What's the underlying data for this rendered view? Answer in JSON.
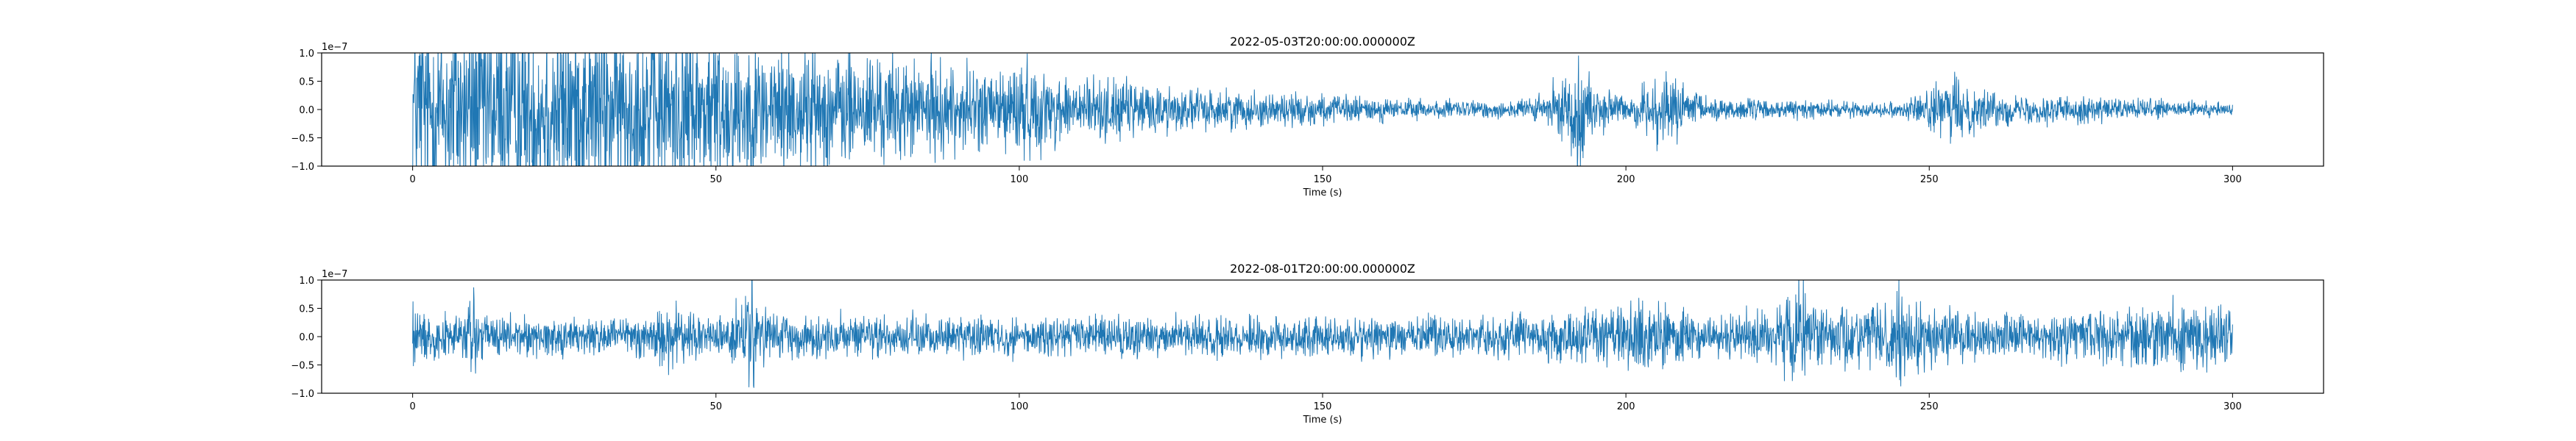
{
  "colors": {
    "trace": "#1f77b4",
    "axes": "#000000",
    "background": "#ffffff"
  },
  "chart_data": [
    {
      "type": "line",
      "title": "2022-05-03T20:00:00.000000Z",
      "xlabel": "Time (s)",
      "ylabel": "",
      "offset_text": "1e−7",
      "xlim": [
        -15,
        315
      ],
      "ylim": [
        -1.0,
        1.0
      ],
      "x_ticks": [
        0,
        50,
        100,
        150,
        200,
        250,
        300
      ],
      "x_tick_labels": [
        "0",
        "50",
        "100",
        "150",
        "200",
        "250",
        "300"
      ],
      "y_ticks": [
        -1.0,
        -0.5,
        0.0,
        0.5,
        1.0
      ],
      "y_tick_labels": [
        "−1.0",
        "−0.5",
        "0.0",
        "0.5",
        "1.0"
      ],
      "grid": false,
      "series": [
        {
          "x": [
            0,
            5,
            10,
            15,
            20,
            25,
            30,
            35,
            40,
            45,
            50,
            55,
            60,
            65,
            70,
            75,
            80,
            85,
            90,
            95,
            100,
            105,
            110,
            115,
            120,
            125,
            130,
            135,
            140,
            145,
            150,
            155,
            160,
            165,
            170,
            175,
            180,
            185,
            190,
            192,
            195,
            200,
            205,
            207,
            210,
            215,
            220,
            225,
            230,
            235,
            240,
            245,
            250,
            255,
            260,
            265,
            270,
            275,
            280,
            285,
            290,
            295,
            300
          ],
          "amplitude": [
            1.5,
            1.5,
            1.5,
            1.5,
            1.5,
            1.5,
            1.4,
            1.4,
            1.3,
            1.3,
            1.2,
            1.1,
            1.0,
            0.95,
            0.9,
            0.85,
            0.75,
            0.7,
            0.65,
            0.6,
            0.75,
            0.55,
            0.5,
            0.45,
            0.4,
            0.35,
            0.3,
            0.28,
            0.26,
            0.25,
            0.22,
            0.2,
            0.18,
            0.15,
            0.14,
            0.13,
            0.14,
            0.18,
            0.45,
            0.9,
            0.35,
            0.2,
            0.45,
            0.55,
            0.3,
            0.2,
            0.15,
            0.14,
            0.13,
            0.12,
            0.1,
            0.12,
            0.3,
            0.5,
            0.25,
            0.2,
            0.22,
            0.2,
            0.18,
            0.15,
            0.13,
            0.12,
            0.1
          ]
        }
      ]
    },
    {
      "type": "line",
      "title": "2022-08-01T20:00:00.000000Z",
      "xlabel": "Time (s)",
      "ylabel": "",
      "offset_text": "1e−7",
      "xlim": [
        -15,
        315
      ],
      "ylim": [
        -1.0,
        1.0
      ],
      "x_ticks": [
        0,
        50,
        100,
        150,
        200,
        250,
        300
      ],
      "x_tick_labels": [
        "0",
        "50",
        "100",
        "150",
        "200",
        "250",
        "300"
      ],
      "y_ticks": [
        -1.0,
        -0.5,
        0.0,
        0.5,
        1.0
      ],
      "y_tick_labels": [
        "−1.0",
        "−0.5",
        "0.0",
        "0.5",
        "1.0"
      ],
      "grid": false,
      "series": [
        {
          "x": [
            0,
            1,
            5,
            9,
            10,
            11,
            15,
            20,
            25,
            30,
            35,
            40,
            42,
            45,
            50,
            55,
            56,
            57,
            60,
            65,
            70,
            75,
            80,
            85,
            90,
            95,
            100,
            105,
            110,
            115,
            120,
            125,
            130,
            135,
            140,
            145,
            150,
            155,
            160,
            165,
            170,
            175,
            180,
            185,
            190,
            195,
            200,
            205,
            210,
            215,
            220,
            225,
            229,
            230,
            235,
            240,
            244,
            245,
            246,
            250,
            255,
            260,
            265,
            270,
            275,
            280,
            285,
            290,
            295,
            300
          ],
          "amplitude": [
            0.8,
            0.35,
            0.3,
            0.4,
            1.0,
            0.4,
            0.3,
            0.28,
            0.3,
            0.28,
            0.3,
            0.35,
            0.55,
            0.4,
            0.3,
            0.5,
            1.0,
            0.45,
            0.3,
            0.28,
            0.3,
            0.28,
            0.3,
            0.28,
            0.3,
            0.3,
            0.28,
            0.3,
            0.28,
            0.3,
            0.3,
            0.28,
            0.3,
            0.28,
            0.3,
            0.3,
            0.28,
            0.3,
            0.28,
            0.3,
            0.3,
            0.28,
            0.3,
            0.35,
            0.4,
            0.45,
            0.55,
            0.45,
            0.35,
            0.3,
            0.35,
            0.45,
            0.9,
            0.5,
            0.45,
            0.5,
            0.6,
            1.0,
            0.6,
            0.45,
            0.4,
            0.35,
            0.35,
            0.35,
            0.4,
            0.45,
            0.45,
            0.5,
            0.5,
            0.4
          ]
        }
      ]
    }
  ]
}
